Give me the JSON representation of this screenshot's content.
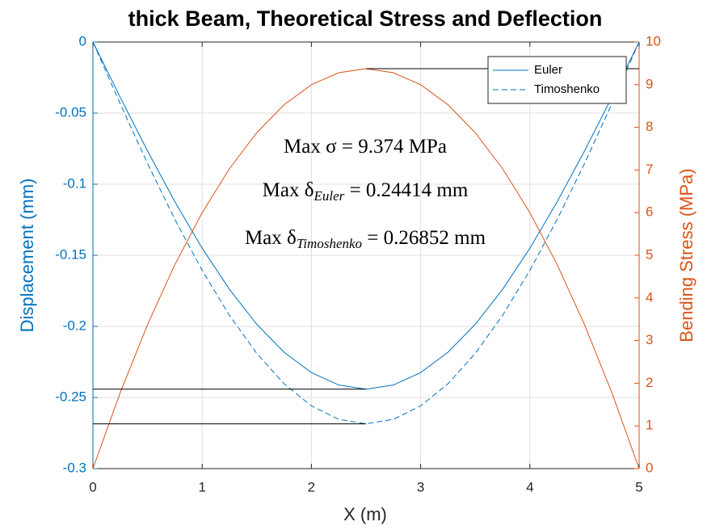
{
  "chart_data": {
    "type": "line",
    "title": "thick Beam, Theoretical Stress and Deflection",
    "xlabel": "X (m)",
    "ylabel": "Displacement (mm)",
    "y2label": "Bending Stress (MPa)",
    "x": [
      0,
      0.25,
      0.5,
      0.75,
      1,
      1.25,
      1.5,
      1.75,
      2,
      2.25,
      2.5,
      2.75,
      3,
      3.25,
      3.5,
      3.75,
      4,
      4.25,
      4.5,
      4.75,
      5
    ],
    "series": [
      {
        "name": "Euler",
        "color": "#0072bd",
        "dash": false,
        "values": [
          0,
          -0.03887,
          -0.07664,
          -0.11231,
          -0.145,
          -0.17395,
          -0.19852,
          -0.21817,
          -0.2325,
          -0.24122,
          -0.24414,
          -0.24122,
          -0.2325,
          -0.21817,
          -0.19852,
          -0.17395,
          -0.145,
          -0.11231,
          -0.07664,
          -0.03887,
          0
        ]
      },
      {
        "name": "Timoshenko",
        "color": "#0072bd",
        "dash": true,
        "values": [
          0,
          -0.0435,
          -0.08542,
          -0.12474,
          -0.1606,
          -0.19224,
          -0.219,
          -0.24036,
          -0.2559,
          -0.26536,
          -0.26852,
          -0.26536,
          -0.2559,
          -0.24036,
          -0.219,
          -0.19224,
          -0.1606,
          -0.12474,
          -0.08542,
          -0.0435,
          0
        ]
      },
      {
        "color": "#d95319",
        "dash": false,
        "axis": "y2",
        "values": [
          0,
          1.781,
          3.375,
          4.781,
          5.999,
          7.031,
          7.874,
          8.53,
          8.999,
          9.28,
          9.374,
          9.28,
          8.999,
          8.53,
          7.874,
          7.031,
          5.999,
          4.781,
          3.375,
          1.781,
          0
        ]
      }
    ],
    "reference_lines": [
      {
        "axis": "y",
        "value": -0.24414,
        "from": 0,
        "to": 2.5,
        "color": "#000000"
      },
      {
        "axis": "y",
        "value": -0.26852,
        "from": 0,
        "to": 2.5,
        "color": "#000000"
      },
      {
        "axis": "y2",
        "value": 9.374,
        "from": 2.5,
        "to": 5,
        "color": "#000000"
      }
    ],
    "annotations": [
      {
        "text": "Max σ = 9.374 MPa"
      },
      {
        "text": "Max δ",
        "sub": "Euler",
        "suffix": " = 0.24414 mm"
      },
      {
        "text": "Max δ",
        "sub": "Timoshenko",
        "suffix": " = 0.26852 mm"
      }
    ],
    "xlim": [
      0,
      5
    ],
    "xticks": [
      0,
      1,
      2,
      3,
      4,
      5
    ],
    "ylim": [
      -0.3,
      0
    ],
    "yticks": [
      -0.3,
      -0.25,
      -0.2,
      -0.15,
      -0.1,
      -0.05,
      0
    ],
    "y2lim": [
      0,
      10
    ],
    "y2ticks": [
      0,
      1,
      2,
      3,
      4,
      5,
      6,
      7,
      8,
      9,
      10
    ],
    "grid": true,
    "legend": "top-right"
  }
}
